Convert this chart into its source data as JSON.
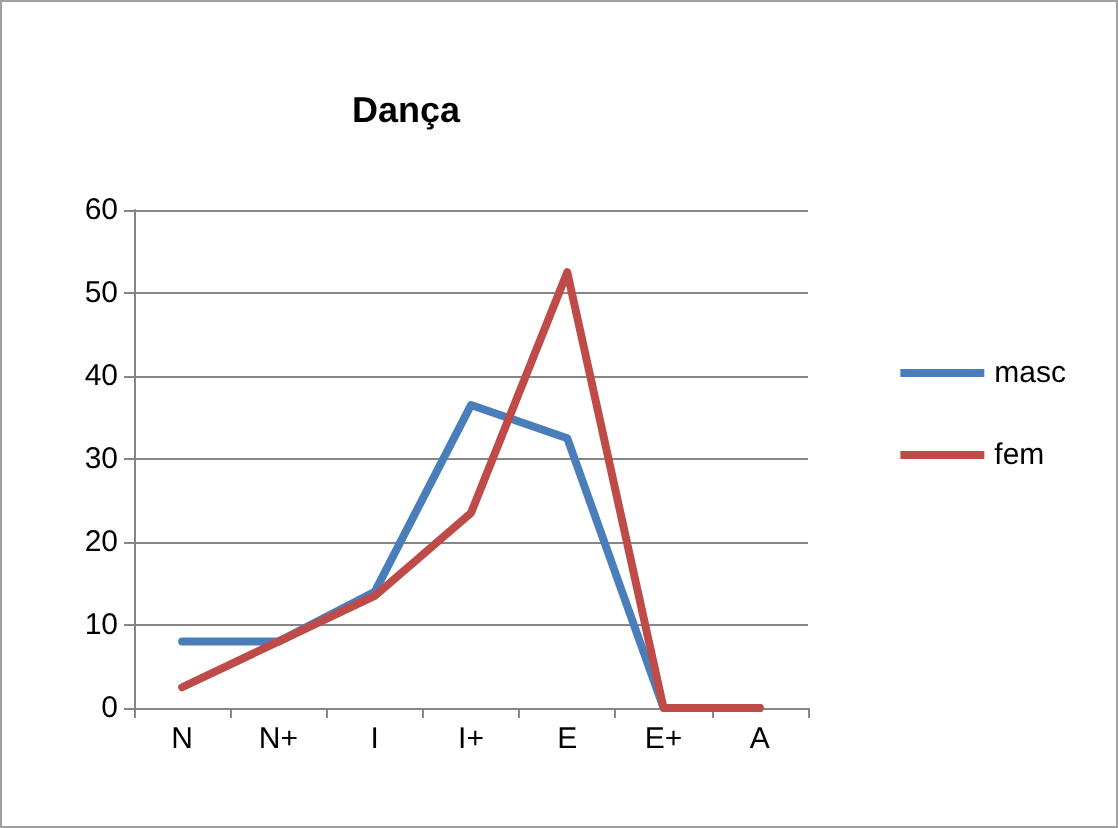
{
  "chart_data": {
    "type": "line",
    "title": "Dança",
    "categories": [
      "N",
      "N+",
      "I",
      "I+",
      "E",
      "E+",
      "A"
    ],
    "series": [
      {
        "name": "masc",
        "color": "#4a7ebb",
        "values": [
          8,
          8,
          14,
          36.5,
          32.5,
          0,
          0
        ]
      },
      {
        "name": "fem",
        "color": "#be4b48",
        "values": [
          2.5,
          8,
          13.5,
          23.5,
          52.5,
          0,
          0
        ]
      }
    ],
    "ylim": [
      0,
      60
    ],
    "yticks": [
      0,
      10,
      20,
      30,
      40,
      50,
      60
    ],
    "grid": "y",
    "legend": "right",
    "marker": "none",
    "line_style": "solid"
  }
}
